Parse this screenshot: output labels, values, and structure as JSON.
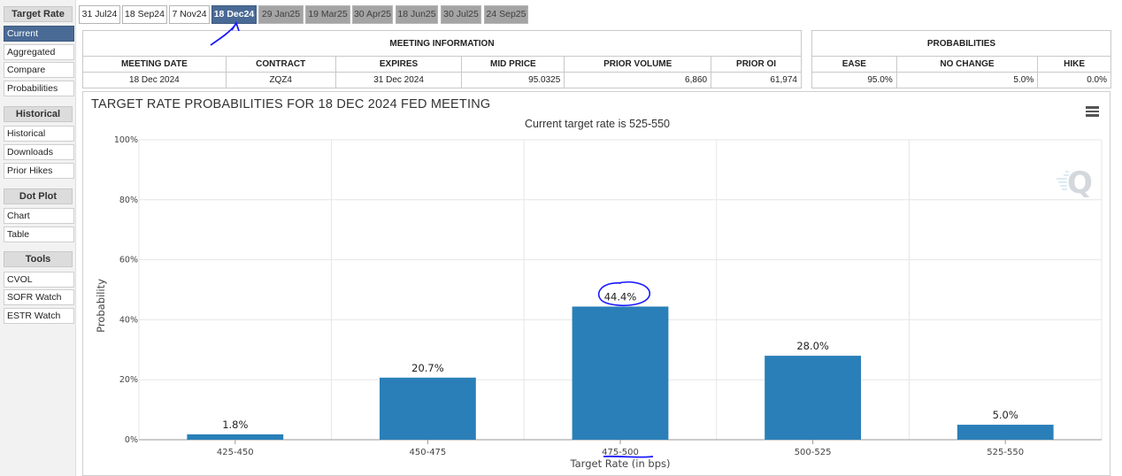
{
  "sidebar": {
    "sections": [
      {
        "heading": "Target Rate",
        "items": [
          "Current",
          "Aggregated",
          "Compare",
          "Probabilities"
        ],
        "active": "Current"
      },
      {
        "heading": "Historical",
        "items": [
          "Historical",
          "Downloads",
          "Prior Hikes"
        ]
      },
      {
        "heading": "Dot Plot",
        "items": [
          "Chart",
          "Table"
        ]
      },
      {
        "heading": "Tools",
        "items": [
          "CVOL",
          "SOFR Watch",
          "ESTR Watch"
        ]
      }
    ]
  },
  "tabs": [
    {
      "label": "31 Jul24",
      "state": "past"
    },
    {
      "label": "18 Sep24",
      "state": "past"
    },
    {
      "label": "7 Nov24",
      "state": "past"
    },
    {
      "label": "18 Dec24",
      "state": "selected"
    },
    {
      "label": "29 Jan25",
      "state": "future"
    },
    {
      "label": "19 Mar25",
      "state": "future"
    },
    {
      "label": "30 Apr25",
      "state": "future"
    },
    {
      "label": "18 Jun25",
      "state": "future"
    },
    {
      "label": "30 Jul25",
      "state": "future"
    },
    {
      "label": "24 Sep25",
      "state": "future"
    }
  ],
  "meeting_info": {
    "title": "MEETING INFORMATION",
    "headers": [
      "MEETING DATE",
      "CONTRACT",
      "EXPIRES",
      "MID PRICE",
      "PRIOR VOLUME",
      "PRIOR OI"
    ],
    "row": [
      "18 Dec 2024",
      "ZQZ4",
      "31 Dec 2024",
      "95.0325",
      "6,860",
      "61,974"
    ]
  },
  "probabilities": {
    "title": "PROBABILITIES",
    "headers": [
      "EASE",
      "NO CHANGE",
      "HIKE"
    ],
    "row": [
      "95.0%",
      "5.0%",
      "0.0%"
    ]
  },
  "chart": {
    "title": "TARGET RATE PROBABILITIES FOR 18 DEC 2024 FED MEETING",
    "subtitle": "Current target rate is 525-550",
    "menu_icon": "hamburger-menu-icon",
    "logo_icon": "q-logo-icon"
  },
  "chart_data": {
    "type": "bar",
    "title": "TARGET RATE PROBABILITIES FOR 18 DEC 2024 FED MEETING",
    "subtitle": "Current target rate is 525-550",
    "xlabel": "Target Rate (in bps)",
    "ylabel": "Probability",
    "categories": [
      "425-450",
      "450-475",
      "475-500",
      "500-525",
      "525-550"
    ],
    "values": [
      1.8,
      20.7,
      44.4,
      28.0,
      5.0
    ],
    "value_labels": [
      "1.8%",
      "20.7%",
      "44.4%",
      "28.0%",
      "5.0%"
    ],
    "ylim": [
      0,
      100
    ],
    "yticks": [
      "0%",
      "20%",
      "40%",
      "60%",
      "80%",
      "100%"
    ],
    "grid": true,
    "bar_color": "#2a7fb8"
  },
  "colors": {
    "selected_tab": "#4a6a96",
    "future_tab": "#a4a4a4",
    "bar": "#2a7fb8",
    "annotation_ink": "#1a1aff"
  }
}
